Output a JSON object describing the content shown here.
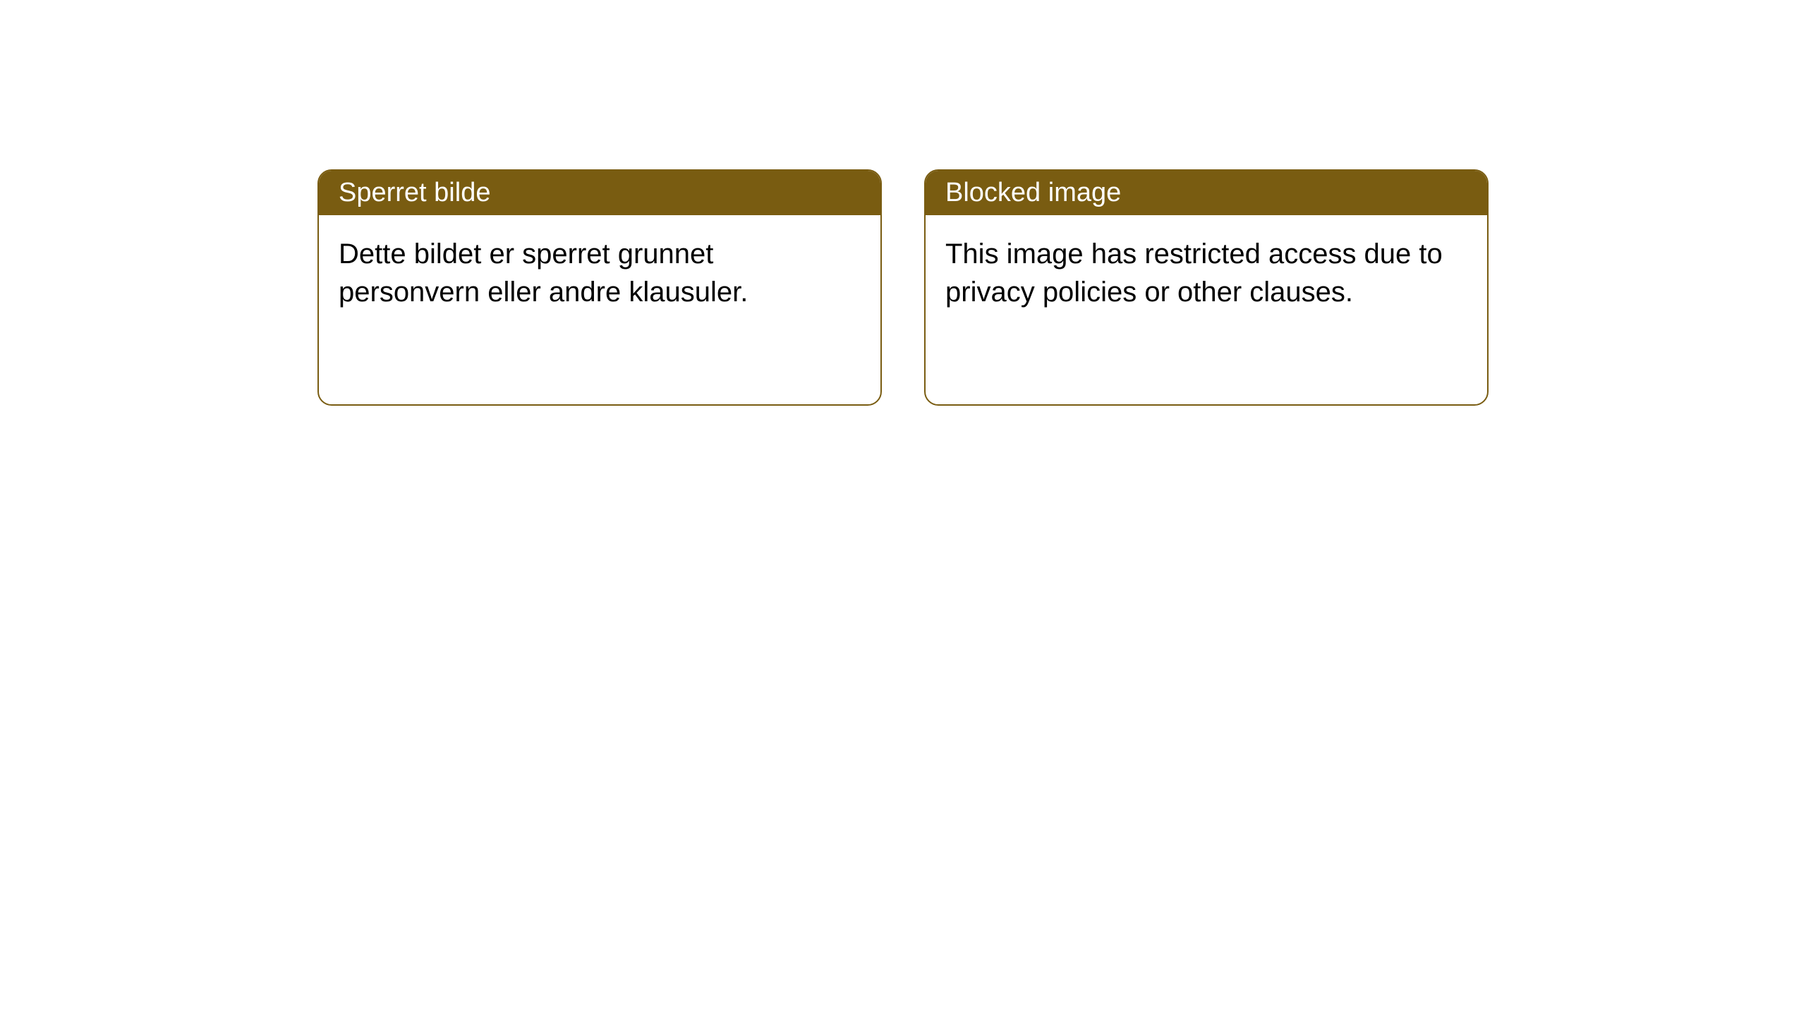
{
  "layout": {
    "background_color": "#ffffff",
    "card_border_color": "#795c11",
    "card_border_radius": 20,
    "card_header_bg": "#795c11",
    "card_header_text_color": "#ffffff",
    "card_body_text_color": "#000000",
    "header_fontsize": 38,
    "body_fontsize": 40,
    "card_gap": 60,
    "card_min_height": 335
  },
  "cards": [
    {
      "title": "Sperret bilde",
      "body": "Dette bildet er sperret grunnet personvern eller andre klausuler."
    },
    {
      "title": "Blocked image",
      "body": "This image has restricted access due to privacy policies or other clauses."
    }
  ]
}
